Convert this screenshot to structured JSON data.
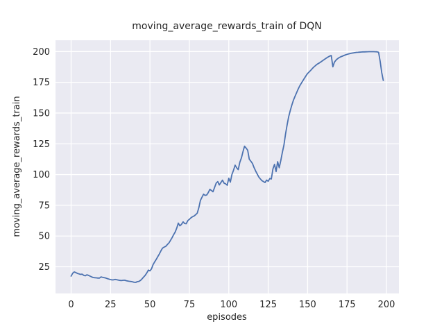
{
  "chart_data": {
    "type": "line",
    "title": "moving_average_rewards_train of DQN",
    "xlabel": "episodes",
    "ylabel": "moving_average_rewards_train",
    "xlim": [
      -9.9,
      207.9
    ],
    "ylim": [
      3.3,
      209.2
    ],
    "xticks": [
      0,
      25,
      50,
      75,
      100,
      125,
      150,
      175,
      200
    ],
    "yticks": [
      25,
      50,
      75,
      100,
      125,
      150,
      175,
      200
    ],
    "grid": true,
    "legend": "none",
    "series": [
      {
        "name": "moving_average_rewards_train",
        "color": "#4C72B0",
        "points": [
          [
            0,
            17.4
          ],
          [
            1,
            19.8
          ],
          [
            2,
            20.8
          ],
          [
            3,
            20.3
          ],
          [
            4,
            19.6
          ],
          [
            5,
            19.2
          ],
          [
            6,
            18.8
          ],
          [
            7,
            19.0
          ],
          [
            8,
            18.0
          ],
          [
            9,
            17.7
          ],
          [
            10,
            18.5
          ],
          [
            11,
            18.0
          ],
          [
            12,
            17.4
          ],
          [
            13,
            16.8
          ],
          [
            14,
            16.3
          ],
          [
            15,
            16.1
          ],
          [
            16,
            16.0
          ],
          [
            17,
            15.8
          ],
          [
            18,
            15.8
          ],
          [
            19,
            16.8
          ],
          [
            20,
            16.4
          ],
          [
            21,
            16.1
          ],
          [
            22,
            15.8
          ],
          [
            23,
            15.4
          ],
          [
            24,
            15.0
          ],
          [
            25,
            14.6
          ],
          [
            26,
            14.3
          ],
          [
            27,
            14.4
          ],
          [
            28,
            14.7
          ],
          [
            29,
            14.4
          ],
          [
            30,
            14.2
          ],
          [
            31,
            13.9
          ],
          [
            32,
            13.8
          ],
          [
            33,
            14.0
          ],
          [
            34,
            14.1
          ],
          [
            35,
            13.7
          ],
          [
            36,
            13.4
          ],
          [
            37,
            13.2
          ],
          [
            38,
            13.0
          ],
          [
            39,
            12.7
          ],
          [
            40,
            12.4
          ],
          [
            41,
            12.3
          ],
          [
            42,
            12.9
          ],
          [
            43,
            13.1
          ],
          [
            44,
            13.9
          ],
          [
            45,
            15.2
          ],
          [
            46,
            16.6
          ],
          [
            47,
            18.0
          ],
          [
            48,
            20.0
          ],
          [
            49,
            22.3
          ],
          [
            50,
            21.7
          ],
          [
            51,
            23.4
          ],
          [
            52,
            26.8
          ],
          [
            53,
            29.0
          ],
          [
            54,
            31.0
          ],
          [
            55,
            33.3
          ],
          [
            56,
            35.5
          ],
          [
            57,
            38.0
          ],
          [
            58,
            40.2
          ],
          [
            59,
            41.0
          ],
          [
            60,
            41.6
          ],
          [
            61,
            43.0
          ],
          [
            62,
            44.3
          ],
          [
            63,
            46.4
          ],
          [
            64,
            48.6
          ],
          [
            65,
            51.0
          ],
          [
            66,
            53.2
          ],
          [
            67,
            56.5
          ],
          [
            68,
            60.5
          ],
          [
            69,
            58.3
          ],
          [
            70,
            59.5
          ],
          [
            71,
            61.5
          ],
          [
            72,
            60.2
          ],
          [
            73,
            60.0
          ],
          [
            74,
            62.5
          ],
          [
            75,
            63.6
          ],
          [
            76,
            64.8
          ],
          [
            77,
            65.7
          ],
          [
            78,
            66.3
          ],
          [
            79,
            67.3
          ],
          [
            80,
            68.6
          ],
          [
            81,
            73.0
          ],
          [
            82,
            79.0
          ],
          [
            83,
            81.5
          ],
          [
            84,
            84.0
          ],
          [
            85,
            83.0
          ],
          [
            86,
            83.4
          ],
          [
            87,
            85.3
          ],
          [
            88,
            88.0
          ],
          [
            89,
            87.0
          ],
          [
            90,
            86.0
          ],
          [
            91,
            89.5
          ],
          [
            92,
            93.0
          ],
          [
            93,
            94.3
          ],
          [
            94,
            91.5
          ],
          [
            95,
            93.5
          ],
          [
            96,
            95.4
          ],
          [
            97,
            93.0
          ],
          [
            98,
            92.5
          ],
          [
            99,
            91.3
          ],
          [
            100,
            97.0
          ],
          [
            101,
            93.8
          ],
          [
            102,
            100.0
          ],
          [
            103,
            103.5
          ],
          [
            104,
            107.6
          ],
          [
            105,
            105.5
          ],
          [
            106,
            104.0
          ],
          [
            107,
            110.0
          ],
          [
            108,
            113.5
          ],
          [
            109,
            118.5
          ],
          [
            110,
            123.0
          ],
          [
            111,
            121.5
          ],
          [
            112,
            119.8
          ],
          [
            113,
            112.5
          ],
          [
            114,
            110.8
          ],
          [
            115,
            109.0
          ],
          [
            116,
            105.8
          ],
          [
            117,
            103.0
          ],
          [
            118,
            100.5
          ],
          [
            119,
            98.0
          ],
          [
            120,
            96.5
          ],
          [
            121,
            95.0
          ],
          [
            122,
            94.3
          ],
          [
            123,
            93.5
          ],
          [
            124,
            95.5
          ],
          [
            125,
            94.6
          ],
          [
            126,
            96.8
          ],
          [
            127,
            96.4
          ],
          [
            128,
            104.5
          ],
          [
            129,
            108.3
          ],
          [
            130,
            102.4
          ],
          [
            131,
            110.5
          ],
          [
            132,
            105.5
          ],
          [
            133,
            111.5
          ],
          [
            134,
            118.0
          ],
          [
            135,
            124.0
          ],
          [
            136,
            133.0
          ],
          [
            137,
            140.5
          ],
          [
            138,
            147.0
          ],
          [
            139,
            152.0
          ],
          [
            140,
            156.5
          ],
          [
            141,
            160.5
          ],
          [
            142,
            163.5
          ],
          [
            143,
            166.5
          ],
          [
            144,
            169.5
          ],
          [
            145,
            172.0
          ],
          [
            146,
            174.2
          ],
          [
            147,
            176.3
          ],
          [
            148,
            178.4
          ],
          [
            149,
            180.3
          ],
          [
            150,
            182.2
          ],
          [
            151,
            183.5
          ],
          [
            152,
            184.8
          ],
          [
            153,
            186.2
          ],
          [
            154,
            187.5
          ],
          [
            155,
            188.6
          ],
          [
            156,
            189.6
          ],
          [
            157,
            190.4
          ],
          [
            158,
            191.2
          ],
          [
            159,
            192.1
          ],
          [
            160,
            193.0
          ],
          [
            161,
            193.9
          ],
          [
            162,
            194.8
          ],
          [
            163,
            195.6
          ],
          [
            164,
            196.3
          ],
          [
            165,
            196.8
          ],
          [
            166,
            187.6
          ],
          [
            167,
            191.3
          ],
          [
            168,
            193.0
          ],
          [
            169,
            194.2
          ],
          [
            170,
            195.1
          ],
          [
            171,
            195.7
          ],
          [
            172,
            196.2
          ],
          [
            173,
            196.8
          ],
          [
            174,
            197.3
          ],
          [
            175,
            197.7
          ],
          [
            176,
            198.1
          ],
          [
            177,
            198.4
          ],
          [
            178,
            198.7
          ],
          [
            179,
            198.9
          ],
          [
            180,
            199.1
          ],
          [
            181,
            199.3
          ],
          [
            182,
            199.4
          ],
          [
            183,
            199.5
          ],
          [
            184,
            199.6
          ],
          [
            185,
            199.7
          ],
          [
            186,
            199.75
          ],
          [
            187,
            199.8
          ],
          [
            188,
            199.85
          ],
          [
            189,
            199.9
          ],
          [
            190,
            199.9
          ],
          [
            191,
            199.9
          ],
          [
            192,
            199.9
          ],
          [
            193,
            199.85
          ],
          [
            194,
            199.8
          ],
          [
            195,
            199.4
          ],
          [
            196,
            192.0
          ],
          [
            197,
            183.0
          ],
          [
            198,
            176.5
          ]
        ]
      }
    ],
    "colors": {
      "figure_background": "#ffffff",
      "axes_background": "#eaeaf2",
      "gridline": "#ffffff",
      "line": "#4C72B0",
      "text": "#262626"
    }
  }
}
